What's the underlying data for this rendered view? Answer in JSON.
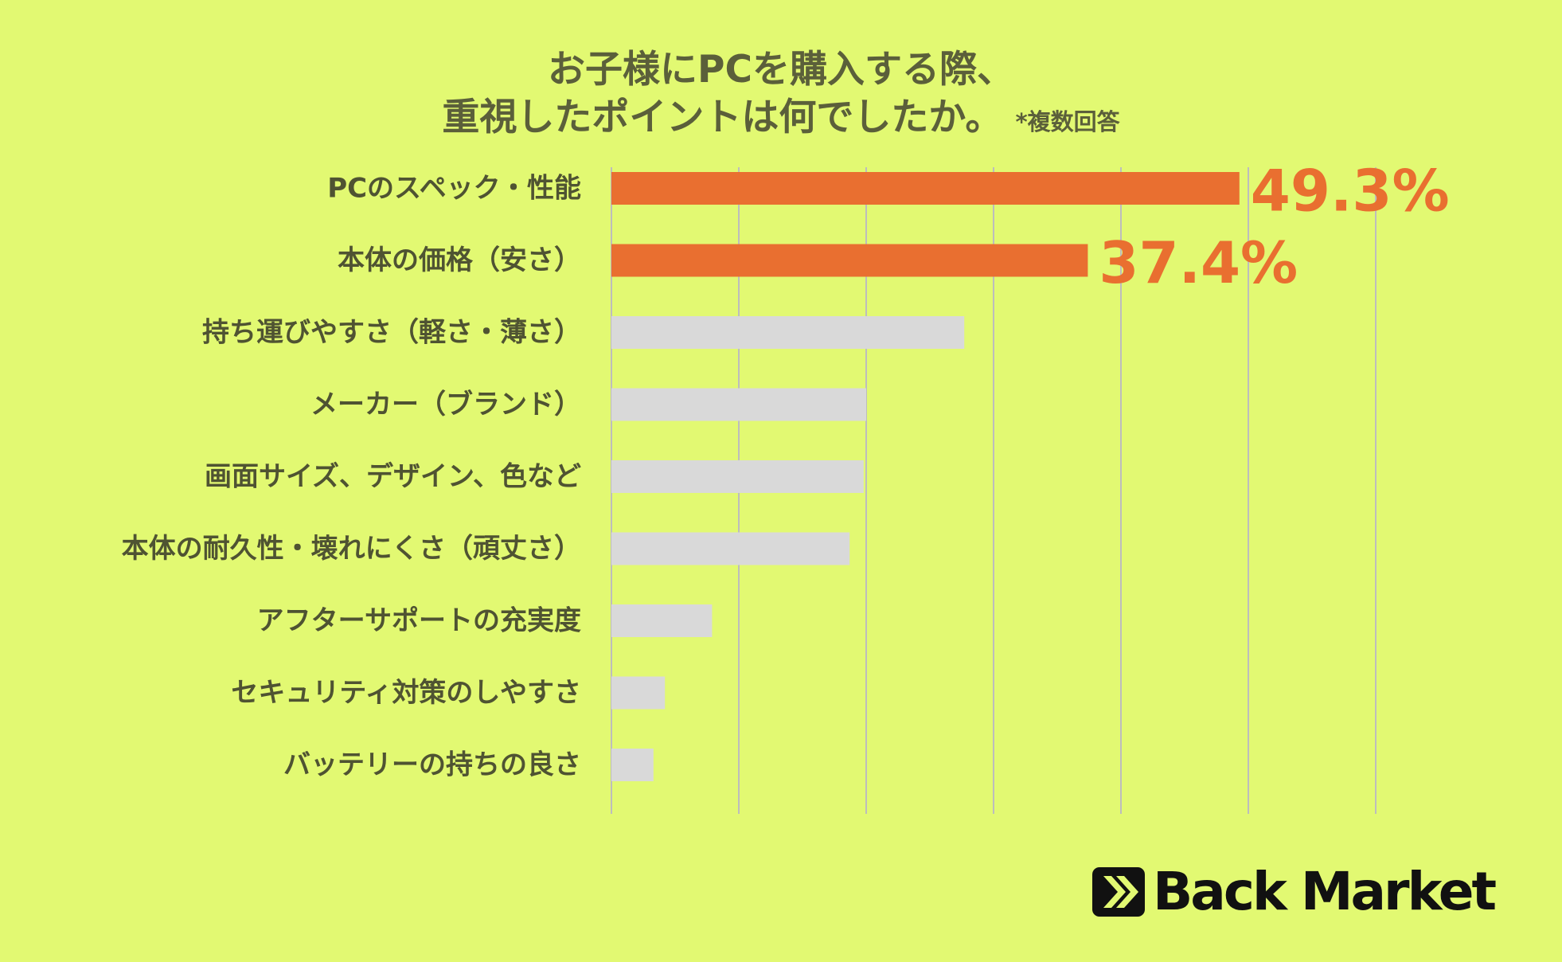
{
  "title": {
    "line1": "お子様にPCを購入する際、",
    "line2": "重視したポイントは何でしたか。",
    "note": "*複数回答"
  },
  "chart_data": {
    "type": "bar",
    "orientation": "horizontal",
    "categories": [
      "PCのスペック・性能",
      "本体の価格（安さ）",
      "持ち運びやすさ（軽さ・薄さ）",
      "メーカー（ブランド）",
      "画面サイズ、デザイン、色など",
      "本体の耐久性・壊れにくさ（頑丈さ）",
      "アフターサポートの充実度",
      "セキュリティ対策のしやすさ",
      "バッテリーの持ちの良さ"
    ],
    "values": [
      49.3,
      37.4,
      27.7,
      20.0,
      19.8,
      18.7,
      7.9,
      4.2,
      3.3
    ],
    "value_labels": [
      "49.3%",
      "37.4%",
      "",
      "",
      "",
      "",
      "",
      "",
      ""
    ],
    "highlight": [
      true,
      true,
      false,
      false,
      false,
      false,
      false,
      false,
      false
    ],
    "xlim": [
      0,
      60
    ],
    "grid_step": 10,
    "grid": true,
    "colors": {
      "highlight": "#e96f30",
      "default": "#d9d9d9",
      "grid": "#bdbdbd",
      "background": "#e2f972"
    }
  },
  "logo": {
    "text": "Back Market",
    "icon": "back-market-chevrons-icon"
  }
}
